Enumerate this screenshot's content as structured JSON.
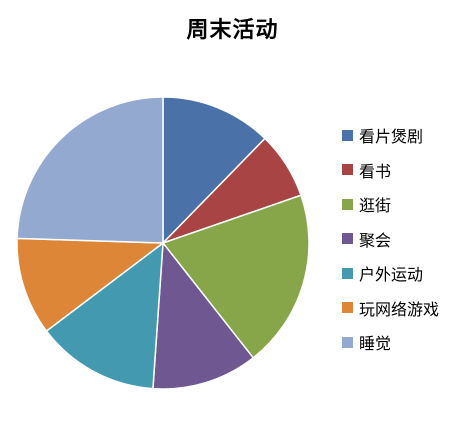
{
  "chart_data": {
    "type": "pie",
    "title": "周末活动",
    "categories": [
      "看片煲剧",
      "看书",
      "逛街",
      "聚会",
      "户外运动",
      "玩网络游戏",
      "睡觉"
    ],
    "values": [
      12.3,
      7.4,
      19.7,
      11.7,
      13.6,
      10.8,
      24.5
    ],
    "colors": [
      "#4a72a8",
      "#a84444",
      "#87a64a",
      "#6f5791",
      "#4299b0",
      "#de8638",
      "#93a9d0"
    ],
    "legend": {
      "position": "right"
    },
    "start_angle_deg": 0,
    "direction": "clockwise"
  }
}
